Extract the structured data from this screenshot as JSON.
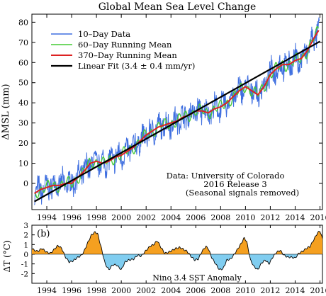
{
  "figure": {
    "title": "Global Mean Sea Level Change",
    "note_lines": [
      "Data: University of Colorado",
      "2016 Release 3",
      "(Seasonal signals removed)"
    ],
    "panel_b_label": "(b)",
    "panel_b_caption": "Nino 3.4 SST Anomaly"
  },
  "colors": {
    "data10": "#3f6fe0",
    "mean60": "#44cc33",
    "mean370": "#dd2222",
    "fit": "#000000",
    "warm": "#f5a020",
    "cool": "#80cdf0"
  },
  "chart_data": [
    {
      "type": "line",
      "title": "Global Mean Sea Level Change",
      "xlabel": "",
      "ylabel": "ΔMSL (mm)",
      "xlim": [
        1992.8,
        2016.2
      ],
      "ylim": [
        -13,
        84
      ],
      "x_ticks": [
        1994,
        1996,
        1998,
        2000,
        2002,
        2004,
        2006,
        2008,
        2010,
        2012,
        2014,
        2016
      ],
      "y_ticks": [
        0,
        10,
        20,
        30,
        40,
        50,
        60,
        70,
        80
      ],
      "legend_position": "top-left",
      "series": [
        {
          "name": "10–Day Data",
          "kind": "noisy",
          "color": "#3f6fe0"
        },
        {
          "name": "60–Day Running Mean",
          "kind": "smooth60",
          "color": "#44cc33"
        },
        {
          "name": "370–Day Running Mean",
          "kind": "smooth370",
          "color": "#dd2222",
          "x": [
            1993.0,
            1993.5,
            1994.0,
            1994.5,
            1995.0,
            1995.5,
            1996.0,
            1996.5,
            1997.0,
            1997.5,
            1998.0,
            1998.5,
            1999.0,
            1999.5,
            2000.0,
            2000.5,
            2001.0,
            2001.5,
            2002.0,
            2002.5,
            2003.0,
            2003.5,
            2004.0,
            2004.5,
            2005.0,
            2005.5,
            2006.0,
            2006.5,
            2007.0,
            2007.5,
            2008.0,
            2008.5,
            2009.0,
            2009.5,
            2010.0,
            2010.5,
            2011.0,
            2011.5,
            2012.0,
            2012.5,
            2013.0,
            2013.5,
            2014.0,
            2014.5,
            2015.0,
            2015.5,
            2015.9
          ],
          "values": [
            -5,
            -3,
            -2,
            -1,
            -1,
            0,
            0,
            3,
            6,
            10,
            11,
            10,
            11,
            13,
            14,
            16,
            18,
            21,
            24,
            26,
            28,
            29,
            30,
            31,
            33,
            34,
            36,
            36,
            35,
            37,
            38,
            40,
            43,
            46,
            48,
            46,
            44,
            48,
            54,
            57,
            59,
            59,
            61,
            62,
            66,
            72,
            76
          ]
        },
        {
          "name": "Linear Fit (3.4 ± 0.4 mm/yr)",
          "kind": "fit",
          "color": "#000000",
          "x": [
            1993.0,
            2016.0
          ],
          "values": [
            -9,
            70.5
          ]
        }
      ]
    },
    {
      "type": "area",
      "title": "",
      "xlabel": "",
      "ylabel": "ΔT (°C)",
      "xlim": [
        1992.8,
        2016.2
      ],
      "ylim": [
        -3,
        3
      ],
      "x_ticks": [
        1994,
        1996,
        1998,
        2000,
        2002,
        2004,
        2006,
        2008,
        2010,
        2012,
        2014,
        2016
      ],
      "y_ticks": [
        -2,
        -1,
        0,
        1,
        2,
        3
      ],
      "series": [
        {
          "name": "",
          "x": [
            1992.8,
            1993.0,
            1993.3,
            1993.6,
            1994.0,
            1994.3,
            1994.6,
            1994.9,
            1995.2,
            1995.5,
            1995.8,
            1996.1,
            1996.4,
            1996.8,
            1997.0,
            1997.3,
            1997.6,
            1997.9,
            1998.1,
            1998.4,
            1998.7,
            1999.0,
            1999.3,
            1999.6,
            2000.0,
            2000.3,
            2000.6,
            2001.0,
            2001.3,
            2001.6,
            2002.0,
            2002.3,
            2002.6,
            2002.9,
            2003.2,
            2003.5,
            2003.8,
            2004.1,
            2004.4,
            2004.7,
            2005.0,
            2005.3,
            2005.6,
            2005.9,
            2006.2,
            2006.5,
            2006.8,
            2007.0,
            2007.3,
            2007.6,
            2007.9,
            2008.2,
            2008.5,
            2008.8,
            2009.0,
            2009.3,
            2009.6,
            2009.9,
            2010.1,
            2010.4,
            2010.7,
            2011.0,
            2011.3,
            2011.6,
            2011.9,
            2012.2,
            2012.5,
            2012.8,
            2013.1,
            2013.4,
            2013.7,
            2014.0,
            2014.3,
            2014.6,
            2014.9,
            2015.2,
            2015.5,
            2015.8,
            2016.0,
            2016.2
          ],
          "values": [
            0.6,
            0.4,
            0.3,
            0.6,
            0.2,
            0.1,
            0.5,
            0.9,
            0.6,
            -0.3,
            -0.8,
            -0.7,
            -0.4,
            -0.1,
            0.3,
            1.2,
            2.0,
            2.3,
            2.1,
            0.6,
            -1.0,
            -1.6,
            -1.1,
            -1.1,
            -1.6,
            -0.8,
            -0.6,
            -0.5,
            -0.1,
            -0.2,
            0.4,
            0.8,
            1.0,
            1.4,
            0.7,
            0.1,
            0.2,
            0.4,
            0.6,
            0.7,
            0.5,
            0.3,
            -0.2,
            -0.6,
            -0.5,
            0.3,
            0.8,
            0.6,
            -0.4,
            -1.0,
            -1.6,
            -1.5,
            -0.6,
            -0.5,
            -0.2,
            0.4,
            1.0,
            1.7,
            1.3,
            -0.6,
            -1.3,
            -1.6,
            -0.9,
            -0.6,
            -1.0,
            -0.3,
            0.2,
            0.4,
            -0.1,
            -0.3,
            -0.3,
            -0.4,
            0.1,
            0.3,
            0.6,
            0.8,
            1.5,
            2.2,
            2.4,
            1.6
          ]
        }
      ]
    }
  ]
}
